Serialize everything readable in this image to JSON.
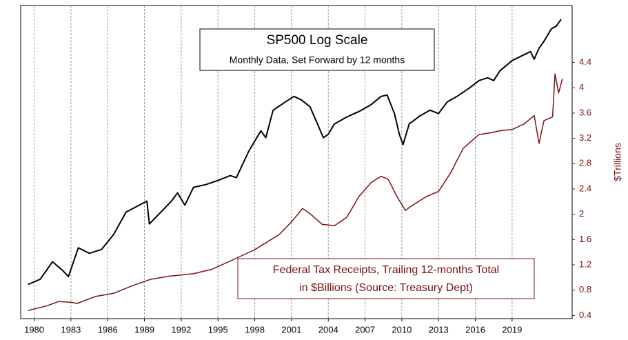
{
  "chart_data": {
    "type": "line",
    "title": "SP500 Log Scale",
    "subtitle": "Monthly Data, Set Forward by 12 months",
    "annotation": [
      "Federal Tax Receipts, Trailing 12-months Total",
      "in $Billions (Source: Treasury Dept)"
    ],
    "y2label": "$Trillions",
    "xlim": [
      1978.9,
      2023.9
    ],
    "xticks": [
      1980,
      1983,
      1986,
      1989,
      1992,
      1995,
      1998,
      2001,
      2004,
      2007,
      2010,
      2013,
      2016,
      2019
    ],
    "xgrid": true,
    "ylim": [
      61,
      5660
    ],
    "yscale": "log",
    "y2lim": [
      0.35,
      5.3
    ],
    "y2ticks": [
      0.4,
      0.8,
      1.2,
      1.6,
      2,
      2.4,
      2.8,
      3.2,
      3.6,
      4,
      4.4
    ],
    "series": [
      {
        "color": "#000000",
        "axis": "y",
        "x": [
          1979.5,
          1980.5,
          1981.5,
          1982.3,
          1982.8,
          1983.6,
          1984.5,
          1985.5,
          1986.5,
          1987.5,
          1989.2,
          1989.4,
          1990.5,
          1991.2,
          1991.7,
          1992.3,
          1993,
          1994,
          1995,
          1996,
          1996.5,
          1997.5,
          1998.5,
          1998.9,
          1999.5,
          2000.5,
          2001.2,
          2001.8,
          2002.5,
          2003,
          2003.6,
          2004,
          2004.5,
          2005.5,
          2006.5,
          2007.5,
          2008.3,
          2008.8,
          2009.4,
          2009.8,
          2010.1,
          2010.6,
          2011.5,
          2012.3,
          2013,
          2013.7,
          2014.5,
          2015.5,
          2016.3,
          2017,
          2017.5,
          2018,
          2019,
          2019.7,
          2020.5,
          2020.8,
          2021.2,
          2021.6,
          2022.2,
          2022.6,
          2023
        ],
        "values": [
          100,
          108,
          139,
          123,
          112,
          170,
          157,
          166,
          207,
          285,
          334,
          240,
          293,
          334,
          376,
          315,
          408,
          424,
          450,
          483,
          469,
          685,
          924,
          836,
          1245,
          1403,
          1520,
          1446,
          1309,
          1072,
          836,
          878,
          1020,
          1127,
          1221,
          1349,
          1520,
          1550,
          1185,
          878,
          756,
          1020,
          1150,
          1245,
          1185,
          1403,
          1520,
          1713,
          1911,
          1989,
          1911,
          2198,
          2553,
          2710,
          2905,
          2604,
          3053,
          3374,
          4036,
          4200,
          4642
        ]
      },
      {
        "color": "#7b1010",
        "axis": "y2",
        "x": [
          1979.5,
          1981,
          1982,
          1983,
          1983.5,
          1985,
          1986.5,
          1988,
          1989.5,
          1991,
          1993,
          1994.5,
          1996,
          1998,
          2000,
          2001,
          2001.9,
          2002.5,
          2003.5,
          2004.5,
          2005.5,
          2006.5,
          2007.5,
          2008.3,
          2008.9,
          2009.6,
          2010.3,
          2010.7,
          2012,
          2013,
          2014,
          2015,
          2016.3,
          2017.3,
          2018,
          2019,
          2020,
          2020.8,
          2021.2,
          2021.6,
          2022.3,
          2022.5,
          2022.8,
          2023.1
        ],
        "values": [
          0.48,
          0.55,
          0.62,
          0.61,
          0.59,
          0.7,
          0.75,
          0.87,
          0.97,
          1.02,
          1.06,
          1.13,
          1.26,
          1.44,
          1.68,
          1.88,
          2.09,
          2.01,
          1.84,
          1.82,
          1.95,
          2.28,
          2.5,
          2.6,
          2.55,
          2.28,
          2.06,
          2.12,
          2.28,
          2.36,
          2.66,
          3.04,
          3.26,
          3.29,
          3.32,
          3.34,
          3.43,
          3.56,
          3.12,
          3.48,
          3.54,
          4.22,
          3.92,
          4.14
        ]
      }
    ]
  }
}
